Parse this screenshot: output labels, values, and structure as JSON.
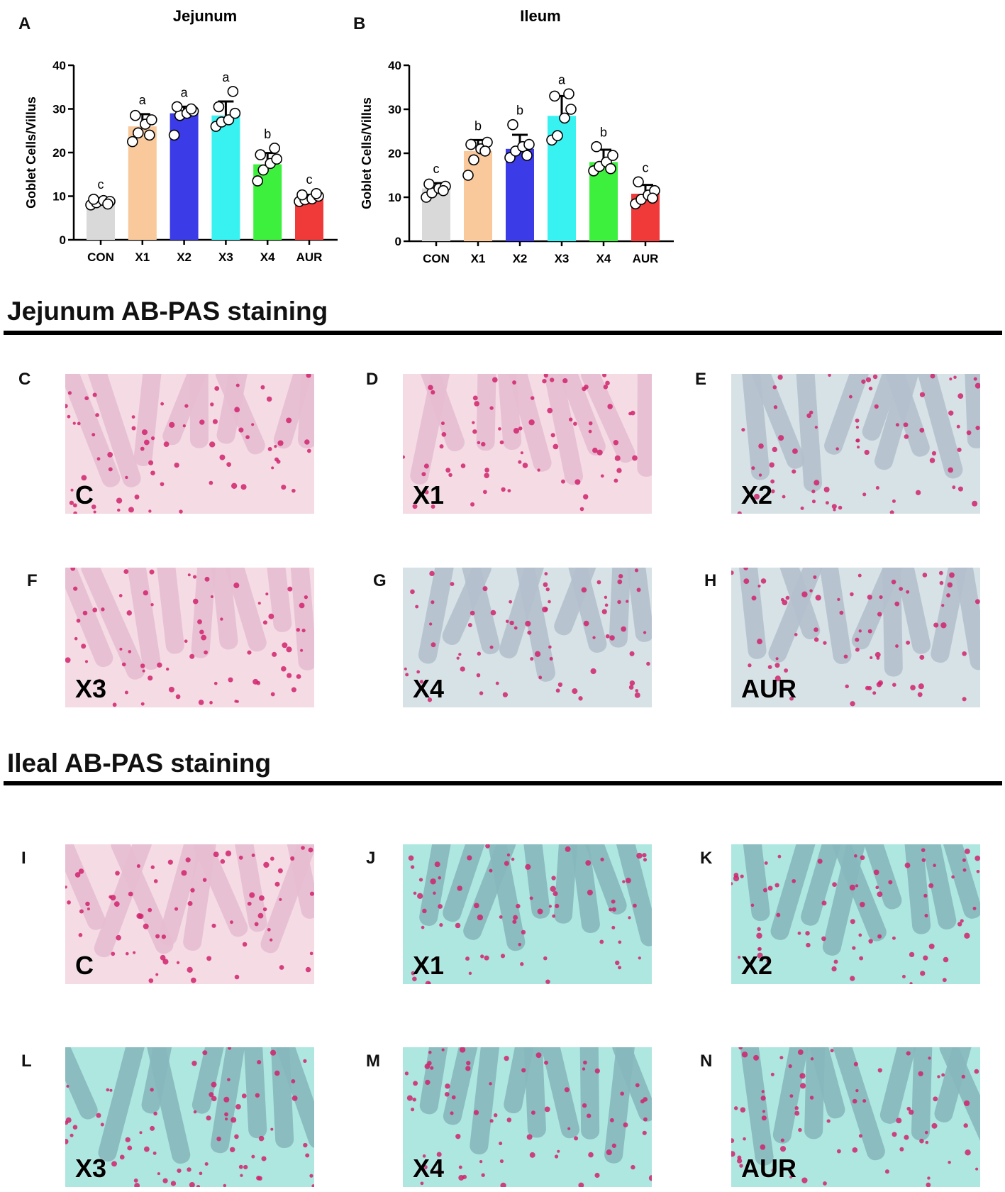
{
  "sections": {
    "jejunum_title": "Jejunum AB-PAS staining",
    "ileal_title": "Ileal AB-PAS staining"
  },
  "chart_data": [
    {
      "panel": "A",
      "type": "bar",
      "title": "Jejunum",
      "ylabel": "Goblet Cells/Villus",
      "xlabel": "",
      "ylim": [
        0,
        40
      ],
      "yticks": [
        0,
        10,
        20,
        30,
        40
      ],
      "categories": [
        "CON",
        "X1",
        "X2",
        "X3",
        "X4",
        "AUR"
      ],
      "values": [
        8.8,
        26.0,
        29.0,
        28.5,
        17.3,
        9.5
      ],
      "errors": [
        0.6,
        2.8,
        1.5,
        3.2,
        2.6,
        0.8
      ],
      "letters": [
        "c",
        "a",
        "a",
        "a",
        "b",
        "c"
      ],
      "colors": [
        "#d9d9d9",
        "#f9c89b",
        "#3b3be8",
        "#38f2f2",
        "#3ef03e",
        "#f03a3a"
      ],
      "points": [
        [
          8.0,
          8.5,
          9.0,
          8.8,
          9.3,
          8.2
        ],
        [
          22.5,
          24.5,
          26.5,
          27.5,
          28.5,
          24.0
        ],
        [
          24.0,
          28.5,
          29.0,
          29.5,
          30.5,
          30.0
        ],
        [
          26.0,
          27.0,
          27.5,
          29.0,
          30.5,
          34.0
        ],
        [
          13.5,
          16.0,
          17.5,
          18.5,
          19.5,
          21.0
        ],
        [
          8.8,
          9.2,
          9.4,
          10.0,
          10.3,
          10.6
        ]
      ],
      "grid": false
    },
    {
      "panel": "B",
      "type": "bar",
      "title": "Ileum",
      "ylabel": "Goblet Cells/Villus",
      "xlabel": "",
      "ylim": [
        0,
        40
      ],
      "yticks": [
        0,
        10,
        20,
        30,
        40
      ],
      "categories": [
        "CON",
        "X1",
        "X2",
        "X3",
        "X4",
        "AUR"
      ],
      "values": [
        12.0,
        20.5,
        21.0,
        28.5,
        18.0,
        10.8
      ],
      "errors": [
        1.2,
        2.5,
        3.2,
        4.5,
        2.8,
        2.0
      ],
      "letters": [
        "c",
        "b",
        "b",
        "a",
        "b",
        "c"
      ],
      "colors": [
        "#d9d9d9",
        "#f9c89b",
        "#3b3be8",
        "#38f2f2",
        "#3ef03e",
        "#f03a3a"
      ],
      "points": [
        [
          10.0,
          11.0,
          12.0,
          12.5,
          13.0,
          11.5
        ],
        [
          15.0,
          18.5,
          21.0,
          22.5,
          22.0,
          20.5
        ],
        [
          19.0,
          20.5,
          21.5,
          22.0,
          26.5,
          19.5
        ],
        [
          23.0,
          24.0,
          28.0,
          30.0,
          33.0,
          33.5
        ],
        [
          16.0,
          17.0,
          18.0,
          19.5,
          21.5,
          16.5
        ],
        [
          8.5,
          9.5,
          10.5,
          11.5,
          13.5,
          9.8
        ]
      ],
      "grid": false
    }
  ],
  "micrographs": [
    {
      "panel": "C",
      "label": "C",
      "stain": "pink"
    },
    {
      "panel": "D",
      "label": "X1",
      "stain": "pink"
    },
    {
      "panel": "E",
      "label": "X2",
      "stain": "blue"
    },
    {
      "panel": "F",
      "label": "X3",
      "stain": "pink"
    },
    {
      "panel": "G",
      "label": "X4",
      "stain": "blue"
    },
    {
      "panel": "H",
      "label": "AUR",
      "stain": "blue"
    },
    {
      "panel": "I",
      "label": "C",
      "stain": "pink"
    },
    {
      "panel": "J",
      "label": "X1",
      "stain": "teal"
    },
    {
      "panel": "K",
      "label": "X2",
      "stain": "teal"
    },
    {
      "panel": "L",
      "label": "X3",
      "stain": "teal"
    },
    {
      "panel": "M",
      "label": "X4",
      "stain": "teal"
    },
    {
      "panel": "N",
      "label": "AUR",
      "stain": "teal"
    }
  ],
  "colors": {
    "pink_bg": "#f4dbe4",
    "pink_tissue": "#e7bdd0",
    "blue_bg": "#d6e2e6",
    "blue_tissue": "#b4c0cc",
    "teal_bg": "#aee6e0",
    "teal_tissue": "#86b7bc",
    "goblet": "#d0226c"
  }
}
